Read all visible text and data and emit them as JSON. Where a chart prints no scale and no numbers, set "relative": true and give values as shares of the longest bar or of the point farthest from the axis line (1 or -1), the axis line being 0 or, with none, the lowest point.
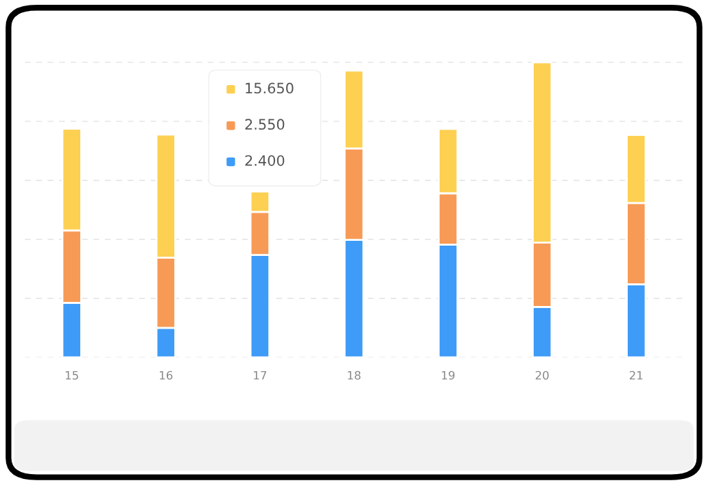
{
  "chart_data": {
    "type": "bar",
    "stacked": true,
    "relative": true,
    "grid": "y",
    "categories": [
      "15",
      "16",
      "17",
      "18",
      "19",
      "20",
      "21"
    ],
    "series": [
      {
        "color": "#3e9bf7",
        "values": [
          0.185,
          0.1,
          0.347,
          0.398,
          0.382,
          0.171,
          0.248
        ]
      },
      {
        "color": "#f79a56",
        "values": [
          0.245,
          0.238,
          0.146,
          0.31,
          0.174,
          0.218,
          0.275
        ]
      },
      {
        "color": "#fdd052",
        "values": [
          0.345,
          0.417,
          0.069,
          0.264,
          0.218,
          0.611,
          0.231
        ]
      }
    ],
    "annotations": [
      "15.650",
      "2.550",
      "2.400"
    ]
  }
}
